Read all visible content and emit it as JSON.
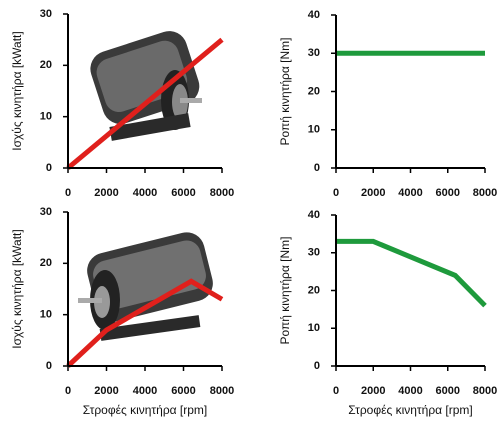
{
  "chart_data": [
    {
      "type": "line",
      "ylabel": "Ισχύς κινητήρα [kWatt]",
      "x": [
        0,
        8000
      ],
      "series": [
        {
          "color": "#e0201c",
          "values": [
            0,
            25
          ]
        }
      ],
      "xlim": [
        0,
        8000
      ],
      "xticks": [
        0,
        2000,
        4000,
        6000,
        8000
      ],
      "ylim": [
        0,
        30
      ],
      "yticks": [
        0,
        10,
        20,
        30
      ]
    },
    {
      "type": "line",
      "ylabel": "Ροπή κινητήρα [Nm]",
      "x": [
        0,
        8000
      ],
      "series": [
        {
          "color": "#1e9a3c",
          "values": [
            30,
            30
          ]
        }
      ],
      "xlim": [
        0,
        8000
      ],
      "xticks": [
        0,
        2000,
        4000,
        6000,
        8000
      ],
      "ylim": [
        0,
        40
      ],
      "yticks": [
        0,
        10,
        20,
        30,
        40
      ]
    },
    {
      "type": "line",
      "ylabel": "Ισχύς κινητήρα [kWatt]",
      "xlabel": "Στροφές κινητήρα [rpm]",
      "x": [
        0,
        2000,
        6400,
        8000
      ],
      "series": [
        {
          "color": "#e0201c",
          "values": [
            0,
            7,
            16.5,
            13
          ]
        }
      ],
      "xlim": [
        0,
        8000
      ],
      "xticks": [
        0,
        2000,
        4000,
        6000,
        8000
      ],
      "ylim": [
        0,
        30
      ],
      "yticks": [
        0,
        10,
        20,
        30
      ]
    },
    {
      "type": "line",
      "ylabel": "Ροπή κινητήρα [Nm]",
      "xlabel": "Στροφές κινητήρα [rpm]",
      "x": [
        0,
        2000,
        6400,
        8000
      ],
      "series": [
        {
          "color": "#1e9a3c",
          "values": [
            33,
            33,
            24,
            16
          ]
        }
      ],
      "xlim": [
        0,
        8000
      ],
      "xticks": [
        0,
        2000,
        4000,
        6000,
        8000
      ],
      "ylim": [
        0,
        40
      ],
      "yticks": [
        0,
        10,
        20,
        30,
        40
      ]
    }
  ]
}
